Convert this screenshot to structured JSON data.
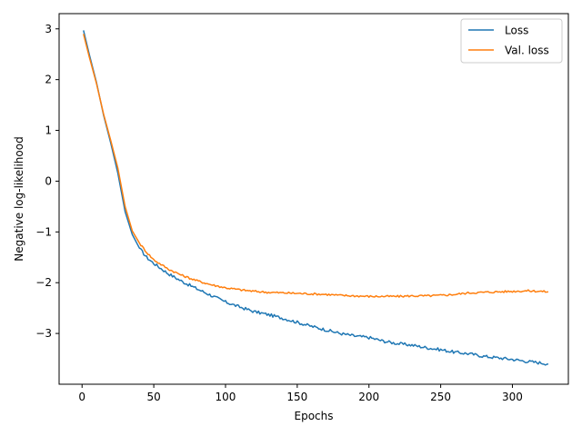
{
  "chart_data": {
    "type": "line",
    "title": "",
    "xlabel": "Epochs",
    "ylabel": "Negative log-likelihood",
    "xlim": [
      -16,
      339
    ],
    "ylim": [
      -4.0,
      3.3
    ],
    "xticks": [
      0,
      50,
      100,
      150,
      200,
      250,
      300
    ],
    "yticks": [
      -3,
      -2,
      -1,
      0,
      1,
      2,
      3
    ],
    "ytick_labels": [
      "−3",
      "−2",
      "−1",
      "0",
      "1",
      "2",
      "3"
    ],
    "grid": false,
    "legend_position": "top-right",
    "series": [
      {
        "name": "Loss",
        "color": "#1f77b4",
        "points": [
          [
            1,
            2.97
          ],
          [
            5,
            2.5
          ],
          [
            10,
            1.95
          ],
          [
            15,
            1.3
          ],
          [
            20,
            0.75
          ],
          [
            25,
            0.15
          ],
          [
            30,
            -0.6
          ],
          [
            35,
            -1.05
          ],
          [
            40,
            -1.32
          ],
          [
            45,
            -1.5
          ],
          [
            50,
            -1.62
          ],
          [
            60,
            -1.82
          ],
          [
            70,
            -1.98
          ],
          [
            80,
            -2.12
          ],
          [
            90,
            -2.25
          ],
          [
            100,
            -2.38
          ],
          [
            110,
            -2.48
          ],
          [
            120,
            -2.57
          ],
          [
            130,
            -2.63
          ],
          [
            140,
            -2.7
          ],
          [
            150,
            -2.78
          ],
          [
            160,
            -2.86
          ],
          [
            170,
            -2.93
          ],
          [
            180,
            -3.0
          ],
          [
            190,
            -3.05
          ],
          [
            200,
            -3.08
          ],
          [
            210,
            -3.15
          ],
          [
            220,
            -3.2
          ],
          [
            230,
            -3.23
          ],
          [
            240,
            -3.28
          ],
          [
            250,
            -3.32
          ],
          [
            260,
            -3.37
          ],
          [
            270,
            -3.4
          ],
          [
            280,
            -3.45
          ],
          [
            290,
            -3.48
          ],
          [
            300,
            -3.51
          ],
          [
            310,
            -3.55
          ],
          [
            320,
            -3.58
          ],
          [
            325,
            -3.6
          ]
        ]
      },
      {
        "name": "Val. loss",
        "color": "#ff7f0e",
        "points": [
          [
            1,
            2.9
          ],
          [
            5,
            2.45
          ],
          [
            10,
            1.93
          ],
          [
            15,
            1.32
          ],
          [
            20,
            0.8
          ],
          [
            25,
            0.25
          ],
          [
            30,
            -0.5
          ],
          [
            35,
            -0.98
          ],
          [
            40,
            -1.22
          ],
          [
            45,
            -1.4
          ],
          [
            50,
            -1.55
          ],
          [
            60,
            -1.73
          ],
          [
            70,
            -1.86
          ],
          [
            80,
            -1.96
          ],
          [
            90,
            -2.04
          ],
          [
            100,
            -2.1
          ],
          [
            110,
            -2.14
          ],
          [
            120,
            -2.17
          ],
          [
            130,
            -2.19
          ],
          [
            140,
            -2.2
          ],
          [
            150,
            -2.21
          ],
          [
            160,
            -2.22
          ],
          [
            170,
            -2.23
          ],
          [
            180,
            -2.25
          ],
          [
            190,
            -2.26
          ],
          [
            200,
            -2.27
          ],
          [
            210,
            -2.27
          ],
          [
            220,
            -2.27
          ],
          [
            230,
            -2.26
          ],
          [
            240,
            -2.26
          ],
          [
            250,
            -2.25
          ],
          [
            260,
            -2.23
          ],
          [
            270,
            -2.2
          ],
          [
            280,
            -2.19
          ],
          [
            290,
            -2.18
          ],
          [
            300,
            -2.17
          ],
          [
            310,
            -2.16
          ],
          [
            320,
            -2.17
          ],
          [
            325,
            -2.18
          ]
        ]
      }
    ]
  }
}
